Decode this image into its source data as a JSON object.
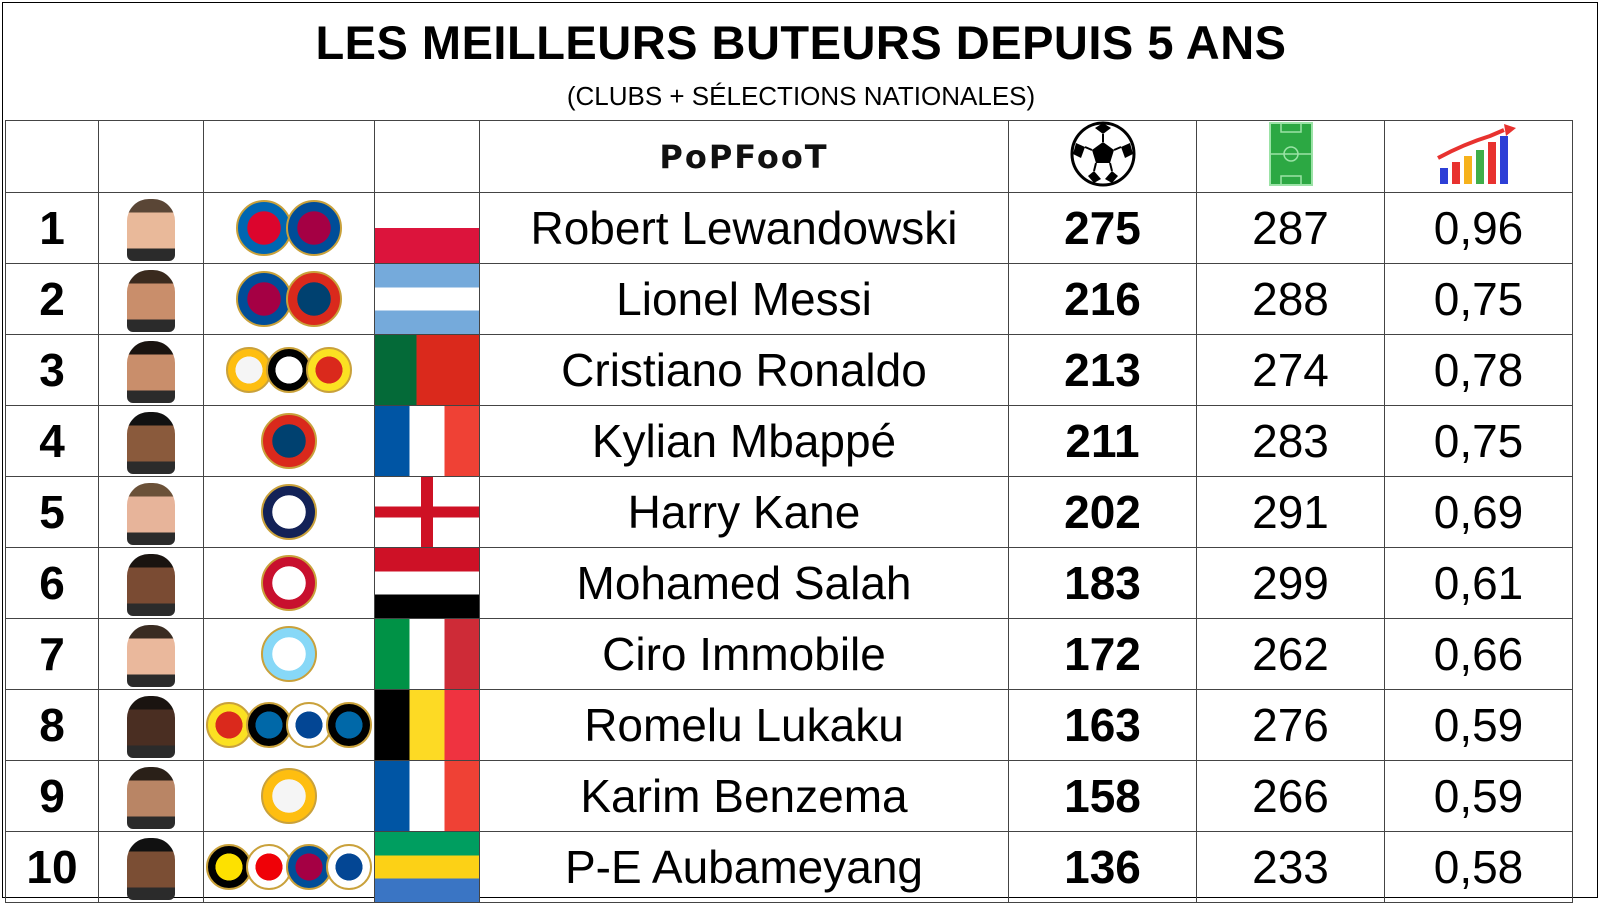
{
  "title": "LES MEILLEURS BUTEURS DEPUIS 5 ANS",
  "subtitle": "(CLUBS + SÉLECTIONS NATIONALES)",
  "header": {
    "brand_logo_text": "PoPFooT",
    "goals_icon": "soccer-ball-icon",
    "matches_icon": "football-pitch-icon",
    "ratio_icon": "growth-bar-chart-icon"
  },
  "chart_data": {
    "type": "table",
    "columns": [
      "rank",
      "player",
      "goals",
      "matches",
      "ratio"
    ],
    "rows": [
      {
        "rank": "1",
        "player": "Robert Lewandowski",
        "goals": "275",
        "matches": "287",
        "ratio": "0,96",
        "clubs": [
          "bayern",
          "barcelona"
        ],
        "flag": "poland"
      },
      {
        "rank": "2",
        "player": "Lionel Messi",
        "goals": "216",
        "matches": "288",
        "ratio": "0,75",
        "clubs": [
          "barcelona",
          "psg"
        ],
        "flag": "argentina"
      },
      {
        "rank": "3",
        "player": "Cristiano Ronaldo",
        "goals": "213",
        "matches": "274",
        "ratio": "0,78",
        "clubs": [
          "real-madrid",
          "juventus",
          "manchester-united"
        ],
        "flag": "portugal"
      },
      {
        "rank": "4",
        "player": "Kylian Mbappé",
        "goals": "211",
        "matches": "283",
        "ratio": "0,75",
        "clubs": [
          "psg"
        ],
        "flag": "france"
      },
      {
        "rank": "5",
        "player": "Harry Kane",
        "goals": "202",
        "matches": "291",
        "ratio": "0,69",
        "clubs": [
          "tottenham"
        ],
        "flag": "england"
      },
      {
        "rank": "6",
        "player": "Mohamed Salah",
        "goals": "183",
        "matches": "299",
        "ratio": "0,61",
        "clubs": [
          "liverpool"
        ],
        "flag": "egypt"
      },
      {
        "rank": "7",
        "player": "Ciro Immobile",
        "goals": "172",
        "matches": "262",
        "ratio": "0,66",
        "clubs": [
          "lazio"
        ],
        "flag": "italy"
      },
      {
        "rank": "8",
        "player": "Romelu Lukaku",
        "goals": "163",
        "matches": "276",
        "ratio": "0,59",
        "clubs": [
          "manchester-united",
          "inter",
          "chelsea",
          "inter"
        ],
        "flag": "belgium"
      },
      {
        "rank": "9",
        "player": "Karim Benzema",
        "goals": "158",
        "matches": "266",
        "ratio": "0,59",
        "clubs": [
          "real-madrid"
        ],
        "flag": "france"
      },
      {
        "rank": "10",
        "player": "P-E Aubameyang",
        "goals": "136",
        "matches": "233",
        "ratio": "0,58",
        "clubs": [
          "dortmund",
          "arsenal",
          "barcelona",
          "chelsea"
        ],
        "flag": "gabon"
      }
    ]
  },
  "colors": {
    "poland_red": "#dc143c",
    "argentina_blue": "#75aadb",
    "portugal_green": "#046a38",
    "portugal_red": "#da291c",
    "france_blue": "#0055a4",
    "france_red": "#ef4135",
    "england_red": "#ce1124",
    "egypt_red": "#ce1126",
    "italy_green": "#009246",
    "italy_red": "#ce2b37",
    "belgium_yellow": "#fdda24",
    "belgium_red": "#ef3340",
    "gabon_green": "#009e60",
    "gabon_yellow": "#fcd116",
    "gabon_blue": "#3a75c4"
  }
}
